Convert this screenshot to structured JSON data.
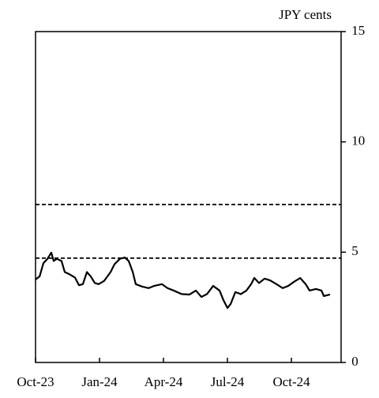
{
  "chart_data": {
    "type": "line",
    "y_axis_label": "JPY cents",
    "x": [
      0,
      0.19,
      0.37,
      0.56,
      0.74,
      0.85,
      1.0,
      1.22,
      1.37,
      1.59,
      1.85,
      2.04,
      2.22,
      2.41,
      2.59,
      2.78,
      2.96,
      3.22,
      3.52,
      3.7,
      3.96,
      4.19,
      4.37,
      4.56,
      4.7,
      5.0,
      5.3,
      5.56,
      5.93,
      6.19,
      6.48,
      6.85,
      7.22,
      7.52,
      7.78,
      8.04,
      8.33,
      8.63,
      8.81,
      9.0,
      9.15,
      9.37,
      9.63,
      9.89,
      10.11,
      10.26,
      10.48,
      10.74,
      11.0,
      11.3,
      11.59,
      11.85,
      12.11,
      12.41,
      12.67,
      12.85,
      13.15,
      13.41,
      13.52,
      13.81
    ],
    "series": [
      {
        "color": "#000000",
        "values": [
          3.76,
          3.9,
          4.5,
          4.7,
          4.98,
          4.6,
          4.7,
          4.6,
          4.1,
          4.0,
          3.85,
          3.5,
          3.55,
          4.1,
          3.9,
          3.6,
          3.55,
          3.7,
          4.1,
          4.45,
          4.7,
          4.76,
          4.6,
          4.1,
          3.55,
          3.44,
          3.37,
          3.47,
          3.55,
          3.37,
          3.26,
          3.1,
          3.08,
          3.26,
          2.97,
          3.1,
          3.47,
          3.26,
          2.83,
          2.47,
          2.65,
          3.19,
          3.1,
          3.26,
          3.55,
          3.83,
          3.6,
          3.8,
          3.72,
          3.55,
          3.37,
          3.47,
          3.65,
          3.83,
          3.55,
          3.26,
          3.33,
          3.26,
          3.01,
          3.08
        ]
      }
    ],
    "reference_lines": [
      7.16,
      4.73
    ],
    "xlim": [
      0,
      14.33
    ],
    "xticks": [
      {
        "value": 0,
        "label": "Oct-23"
      },
      {
        "value": 3,
        "label": "Jan-24"
      },
      {
        "value": 6,
        "label": "Apr-24"
      },
      {
        "value": 9,
        "label": "Jul-24"
      },
      {
        "value": 12,
        "label": "Oct-24"
      }
    ],
    "ylim": [
      0,
      15
    ],
    "yticks": [
      0,
      5,
      10,
      15
    ],
    "y_axis_side": "right"
  }
}
